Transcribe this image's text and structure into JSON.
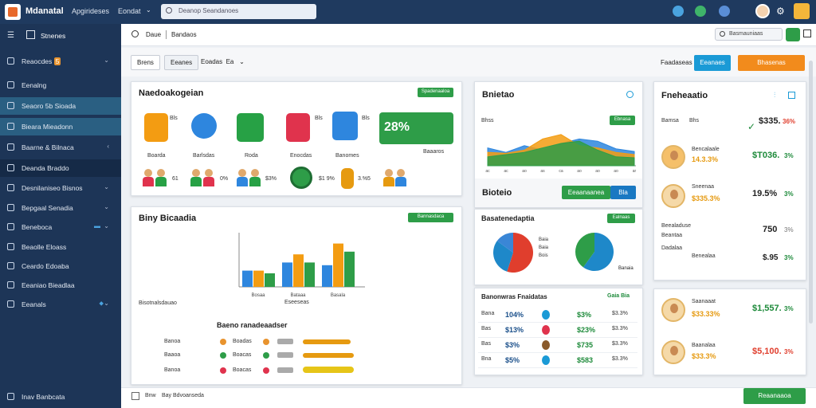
{
  "topbar": {
    "title": "Mdanatal",
    "nav1": "Apgirideses",
    "nav2": "Eondat",
    "search_placeholder": "Deanop Seandanoes"
  },
  "sidebar": {
    "header": "Stnenes",
    "items": [
      {
        "label": "Reaocdes",
        "badge": "5",
        "icon": "gear-icon"
      },
      {
        "label": "Eenalng",
        "icon": "folder-icon"
      },
      {
        "label": "Seaoro 5b Sioada",
        "icon": "chart-icon"
      },
      {
        "label": "Bieara Mieadonn",
        "icon": "globe-icon"
      },
      {
        "label": "Baarne & Bilnaca",
        "icon": "card-icon"
      },
      {
        "label": "Deanda Braddo",
        "icon": "doc-icon"
      },
      {
        "label": "Desnilaniseo Bisnos",
        "icon": "grid-icon"
      },
      {
        "label": "Bepgaal Senadia",
        "icon": "settings-icon"
      },
      {
        "label": "Beneboca",
        "icon": "briefcase-icon"
      },
      {
        "label": "Beaolle Eloass",
        "icon": "mail-icon"
      },
      {
        "label": "Ceardo Edoaba",
        "icon": "calendar-icon"
      },
      {
        "label": "Eeaniao Bieadlaa",
        "icon": "bell-icon"
      },
      {
        "label": "Eeanals",
        "icon": "user-icon"
      }
    ],
    "footer": "Inav Banbcata"
  },
  "content_header": {
    "breadcrumb_1": "Daue",
    "breadcrumb_2": "Bandaos",
    "search_placeholder": "Basmauniaas"
  },
  "tabs": {
    "tab1": "Brens",
    "tab2": "Eeanes",
    "tab3": "Eoadas",
    "tab3_extra": "Ea",
    "right_label": "Faadaseas",
    "btn_primary": "Eeanaes",
    "btn_accent": "Bhasenas"
  },
  "apps_card": {
    "title": "Naedoakogeian",
    "action": "Spadenaaloa",
    "tiles": [
      {
        "label": "Boarda",
        "tag": "Bls",
        "color": "#f39c12"
      },
      {
        "label": "Barlsdas",
        "tag": "",
        "color": "#2e86de"
      },
      {
        "label": "Roda",
        "tag": "",
        "color": "#27a145"
      },
      {
        "label": "Enocdas",
        "tag": "Bls",
        "color": "#e0334d"
      },
      {
        "label": "Banomes",
        "tag": "Bls",
        "color": "#2e86de"
      }
    ],
    "stat": "28%",
    "stat_label": "Baaaros",
    "row_values": [
      "61",
      "0%",
      "$3%",
      "$1 9%",
      "3.%5"
    ]
  },
  "summary_card": {
    "title": "Bnietao",
    "label": "Bhss",
    "action": "Ebnasa",
    "section": "Bioteio",
    "btn1": "Eeaanaanea",
    "btn2": "Bla"
  },
  "finance_card": {
    "title": "Fneheaatio",
    "rows": [
      {
        "name": "Bamsa",
        "sub": "Bhs",
        "value": "$335.",
        "delta": "36%"
      },
      {
        "name": "Bencalaale",
        "sub": "14.3.3%",
        "value": "$T036.",
        "delta": "3%"
      },
      {
        "name": "Sneenaa",
        "sub": "$335.3%",
        "value": "19.5%",
        "delta": "3%"
      },
      {
        "name": "Beealaduse",
        "sub": "Beantaa",
        "value": "750",
        "delta": "3%"
      },
      {
        "name": "Dadalaa",
        "sub": "Benealaa",
        "value": "$.95",
        "delta": "3%"
      }
    ]
  },
  "bar_card": {
    "title": "Biny Bicaadia",
    "action": "Bannasdaca",
    "xlabel": "Eseeseas",
    "left_label": "Bisotnalsdauao",
    "section": "Baeno ranadeaadser",
    "legend": [
      {
        "label": "Banoa",
        "tag": "Boadas",
        "color": "#e8932e"
      },
      {
        "label": "Baaoa",
        "tag": "Boacas",
        "color": "#2e9d48"
      },
      {
        "label": "Banoa",
        "tag": "Boacas",
        "color": "#e0334d"
      }
    ]
  },
  "bar_chart": {
    "type": "bar",
    "categories": [
      "Bosaa",
      "Bataaa",
      "Basala"
    ],
    "series": [
      {
        "values": [
          30,
          45,
          40
        ]
      },
      {
        "values": [
          30,
          60,
          80
        ]
      },
      {
        "values": [
          25,
          45,
          65
        ]
      }
    ],
    "ylim": [
      0,
      100
    ],
    "colors": [
      "#2e86de",
      "#f39c12",
      "#2e9d48"
    ]
  },
  "pie_card": {
    "title": "Basatenedaptia",
    "action": "Ealnaas",
    "pie1_labels": [
      "Baia",
      "Baia",
      "Bois"
    ],
    "pie2_label": "Banaia"
  },
  "pie_charts": [
    {
      "type": "pie",
      "values": [
        55,
        30,
        15
      ],
      "colors": [
        "#e03e2d",
        "#1e88c9",
        "#3a86d6"
      ]
    },
    {
      "type": "pie",
      "values": [
        60,
        40
      ],
      "colors": [
        "#1e88c9",
        "#2e9d48"
      ]
    }
  ],
  "transactions_card": {
    "title": "Banonwras Fnaidatas",
    "action": "Gaia Bia",
    "rows": [
      {
        "k": "Bana",
        "a": "104%",
        "b": "$3%",
        "c": "$3.3%"
      },
      {
        "k": "Bas",
        "a": "$13%",
        "b": "$23%",
        "c": "$3.3%"
      },
      {
        "k": "Bas",
        "a": "$3%",
        "b": "$735",
        "c": "$3.3%"
      },
      {
        "k": "Bna",
        "a": "$5%",
        "b": "$583",
        "c": "$3.3%"
      }
    ]
  },
  "people_card": {
    "rows": [
      {
        "name": "Saanaaat",
        "sub": "$33.33%",
        "value": "$1,557.",
        "delta": "3%"
      },
      {
        "name": "Baanalaa",
        "sub": "$33.3%",
        "value": "$5,100.",
        "delta": "3%"
      }
    ]
  },
  "area_chart": {
    "type": "area",
    "categories": [
      "ac",
      "ac",
      "ao",
      "as",
      "ca",
      "ao",
      "ao",
      "ao",
      "ar"
    ],
    "series": [
      {
        "values": [
          40,
          30,
          45,
          35,
          50,
          60,
          55,
          38,
          32
        ]
      },
      {
        "values": [
          30,
          28,
          35,
          60,
          70,
          45,
          40,
          30,
          25
        ]
      },
      {
        "values": [
          20,
          25,
          30,
          40,
          50,
          55,
          35,
          20,
          18
        ]
      }
    ],
    "colors": [
      "#2e86de",
      "#f39c12",
      "#2e9d48"
    ],
    "ylim": [
      0,
      100
    ]
  },
  "footer": {
    "left": "Inav Banbcata",
    "mid_1": "Bnw",
    "mid_2": "Bay Bdvoanseda",
    "button": "Reaanaaoa"
  }
}
